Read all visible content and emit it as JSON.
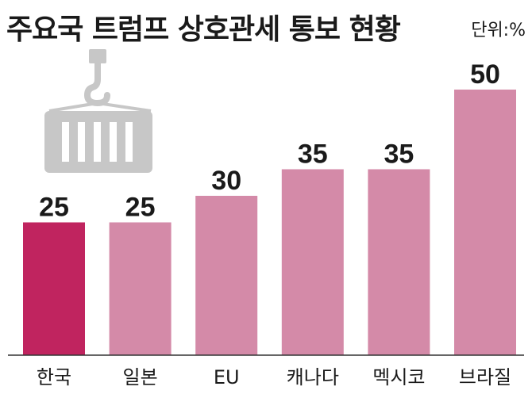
{
  "chart_data": {
    "type": "bar",
    "title": "주요국 트럼프 상호관세 통보 현황",
    "unit": "단위:%",
    "categories": [
      "한국",
      "일본",
      "EU",
      "캐나다",
      "멕시코",
      "브라질"
    ],
    "values": [
      25,
      25,
      30,
      35,
      35,
      50
    ],
    "ylim": [
      0,
      50
    ],
    "highlight_color": "#c0245f",
    "bar_color": "#d48aa8",
    "highlight_index": 0,
    "grid": false
  },
  "decor": {
    "icon": "shipping-container-icon"
  }
}
